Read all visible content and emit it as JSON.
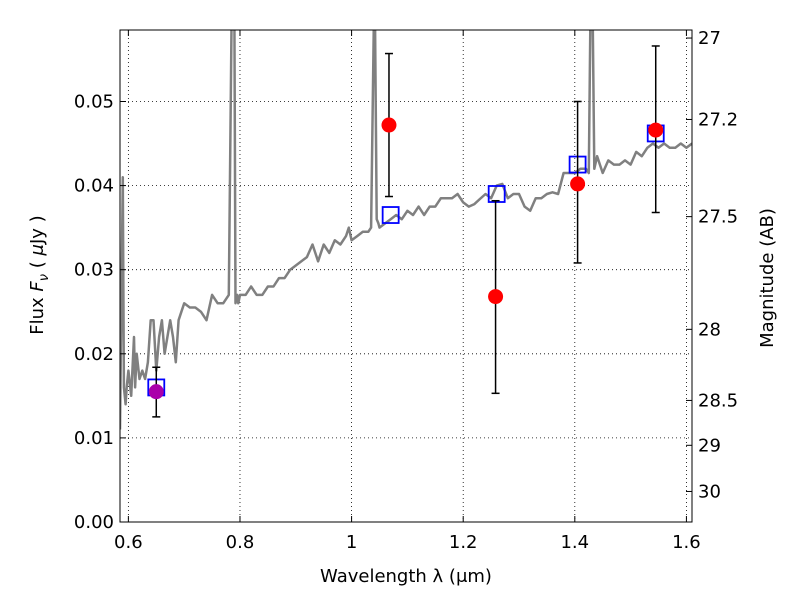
{
  "chart_data": {
    "type": "line",
    "xlabel": "Wavelength λ (μm)",
    "ylabel": "Flux F_ν ( μJy )",
    "ylabel_parts": {
      "pre": "Flux ",
      "var": "F",
      "sub": "ν",
      "mid": " ( ",
      "unit_var": "μ",
      "unit": "Jy )"
    },
    "y2label": "Magnitude (AB)",
    "xlim": [
      0.585,
      1.61
    ],
    "ylim": [
      0.0,
      0.0585
    ],
    "grid": true,
    "x_ticks": [
      {
        "value": 0.6,
        "label": "0.6"
      },
      {
        "value": 0.8,
        "label": "0.8"
      },
      {
        "value": 1.0,
        "label": "1"
      },
      {
        "value": 1.2,
        "label": "1.2"
      },
      {
        "value": 1.4,
        "label": "1.4"
      },
      {
        "value": 1.6,
        "label": "1.6"
      }
    ],
    "y_ticks": [
      {
        "value": 0.0,
        "label": "0.00"
      },
      {
        "value": 0.01,
        "label": "0.01"
      },
      {
        "value": 0.02,
        "label": "0.02"
      },
      {
        "value": 0.03,
        "label": "0.03"
      },
      {
        "value": 0.04,
        "label": "0.04"
      },
      {
        "value": 0.05,
        "label": "0.05"
      }
    ],
    "mag_ticks": [
      {
        "value": 27.0,
        "label": "27"
      },
      {
        "value": 27.2,
        "label": "27.2"
      },
      {
        "value": 27.5,
        "label": "27.5"
      },
      {
        "value": 28.0,
        "label": "28"
      },
      {
        "value": 28.5,
        "label": "28.5"
      },
      {
        "value": 29.0,
        "label": "29"
      },
      {
        "value": 30.0,
        "label": "30"
      }
    ],
    "colors": {
      "spectrum": "#808080",
      "model": "#0000ff",
      "observed": "#ff0000",
      "observed_first": "#aa00aa",
      "errorbar": "#000000"
    },
    "spectrum": {
      "name": "",
      "x": [
        0.585,
        0.59,
        0.592,
        0.595,
        0.597,
        0.6,
        0.605,
        0.61,
        0.612,
        0.615,
        0.62,
        0.625,
        0.63,
        0.635,
        0.64,
        0.645,
        0.65,
        0.655,
        0.66,
        0.665,
        0.67,
        0.675,
        0.68,
        0.685,
        0.69,
        0.695,
        0.7,
        0.71,
        0.72,
        0.73,
        0.74,
        0.75,
        0.76,
        0.77,
        0.78,
        0.785,
        0.79,
        0.792,
        0.795,
        0.797,
        0.8,
        0.81,
        0.82,
        0.83,
        0.84,
        0.85,
        0.86,
        0.87,
        0.88,
        0.89,
        0.9,
        0.91,
        0.92,
        0.93,
        0.94,
        0.95,
        0.96,
        0.97,
        0.98,
        0.99,
        0.995,
        1.0,
        1.01,
        1.02,
        1.03,
        1.035,
        1.04,
        1.042,
        1.045,
        1.048,
        1.05,
        1.06,
        1.07,
        1.08,
        1.09,
        1.1,
        1.11,
        1.12,
        1.13,
        1.14,
        1.15,
        1.16,
        1.17,
        1.18,
        1.19,
        1.2,
        1.21,
        1.22,
        1.23,
        1.24,
        1.25,
        1.26,
        1.27,
        1.28,
        1.29,
        1.3,
        1.31,
        1.32,
        1.33,
        1.34,
        1.35,
        1.36,
        1.37,
        1.38,
        1.39,
        1.4,
        1.41,
        1.42,
        1.425,
        1.428,
        1.432,
        1.435,
        1.44,
        1.45,
        1.46,
        1.47,
        1.48,
        1.49,
        1.5,
        1.51,
        1.52,
        1.53,
        1.54,
        1.55,
        1.56,
        1.57,
        1.58,
        1.59,
        1.6,
        1.61
      ],
      "y": [
        0.011,
        0.041,
        0.016,
        0.014,
        0.016,
        0.018,
        0.015,
        0.022,
        0.016,
        0.02,
        0.017,
        0.018,
        0.017,
        0.019,
        0.024,
        0.024,
        0.018,
        0.022,
        0.024,
        0.02,
        0.022,
        0.024,
        0.022,
        0.019,
        0.024,
        0.025,
        0.026,
        0.0255,
        0.0255,
        0.025,
        0.024,
        0.027,
        0.026,
        0.026,
        0.027,
        0.06,
        0.06,
        0.026,
        0.027,
        0.026,
        0.027,
        0.027,
        0.028,
        0.027,
        0.027,
        0.028,
        0.028,
        0.029,
        0.029,
        0.03,
        0.0305,
        0.031,
        0.0315,
        0.033,
        0.031,
        0.033,
        0.032,
        0.0335,
        0.033,
        0.034,
        0.035,
        0.0335,
        0.034,
        0.0345,
        0.0345,
        0.035,
        0.06,
        0.06,
        0.036,
        0.0355,
        0.035,
        0.0355,
        0.036,
        0.0365,
        0.036,
        0.037,
        0.0365,
        0.0375,
        0.0365,
        0.0375,
        0.0375,
        0.0385,
        0.0385,
        0.0385,
        0.039,
        0.038,
        0.0375,
        0.0378,
        0.0384,
        0.039,
        0.0385,
        0.04,
        0.0402,
        0.0385,
        0.039,
        0.039,
        0.0375,
        0.037,
        0.0385,
        0.0385,
        0.039,
        0.0392,
        0.039,
        0.0415,
        0.0415,
        0.0415,
        0.042,
        0.042,
        0.0415,
        0.06,
        0.06,
        0.042,
        0.0435,
        0.0415,
        0.043,
        0.0425,
        0.0425,
        0.043,
        0.0425,
        0.044,
        0.0435,
        0.0445,
        0.045,
        0.0445,
        0.045,
        0.0445,
        0.0445,
        0.045,
        0.0445,
        0.045
      ]
    },
    "series": [
      {
        "name": "",
        "marker": "square",
        "x": [
          0.65,
          1.07,
          1.26,
          1.405,
          1.545
        ],
        "y": [
          0.016,
          0.0365,
          0.039,
          0.0425,
          0.0462
        ]
      },
      {
        "name": "",
        "marker": "circle",
        "x": [
          0.65,
          1.067,
          1.258,
          1.405,
          1.545
        ],
        "y": [
          0.0155,
          0.0472,
          0.0268,
          0.0402,
          0.0466
        ],
        "yerr_low": [
          0.0125,
          0.0387,
          0.0153,
          0.0308,
          0.0368
        ],
        "yerr_high": [
          0.0184,
          0.0557,
          0.0382,
          0.05,
          0.0566
        ]
      }
    ]
  }
}
